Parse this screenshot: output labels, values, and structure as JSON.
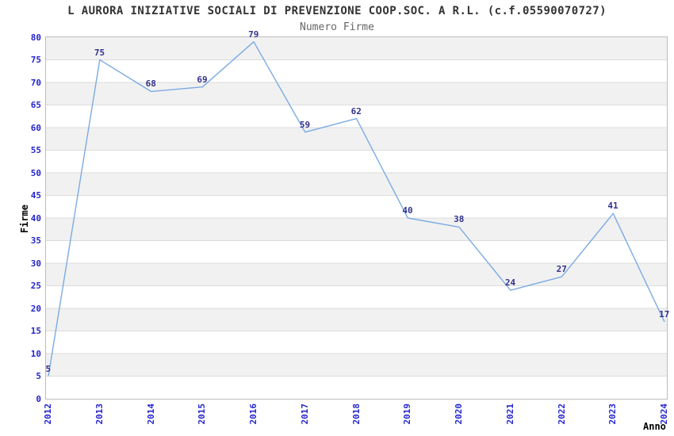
{
  "chart_data": {
    "type": "line",
    "title": "L AURORA INIZIATIVE SOCIALI DI PREVENZIONE COOP.SOC. A R.L. (c.f.05590070727)",
    "subtitle": "Numero Firme",
    "xlabel": "Anno",
    "ylabel": "Firme",
    "categories": [
      "2012",
      "2013",
      "2014",
      "2015",
      "2016",
      "2017",
      "2018",
      "2019",
      "2020",
      "2021",
      "2022",
      "2023",
      "2024"
    ],
    "values": [
      5,
      75,
      68,
      69,
      79,
      59,
      62,
      40,
      38,
      24,
      27,
      41,
      17
    ],
    "ylim": [
      0,
      80
    ],
    "ytick_step": 5,
    "grid": "horizontal-bands",
    "legend": "none",
    "point_labels_visible": true,
    "colors": {
      "line": "#7babe3",
      "value_label": "#32328c",
      "tick_label": "#2525cd",
      "axis_title": "#000000",
      "title": "#333333",
      "subtitle": "#666666",
      "band_fill": "#f1f1f1",
      "gridline": "#dcdcdc",
      "plot_border": "#bdbdbd"
    }
  }
}
